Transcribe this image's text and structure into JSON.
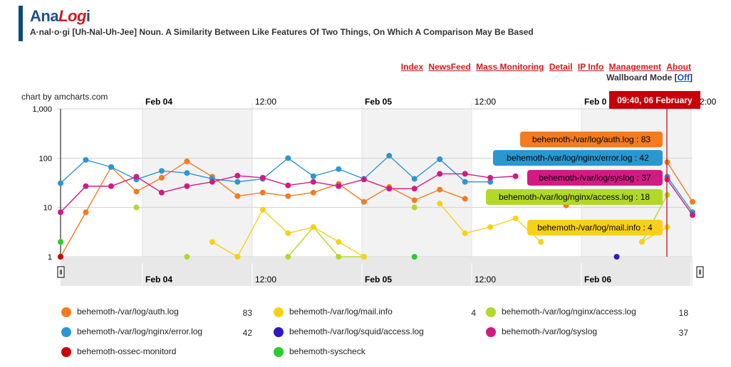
{
  "brand": {
    "part1": "Ana",
    "part2": "Log",
    "part3": "i"
  },
  "tagline": "A·nal·o·gi [Uh-Nal-Uh-Jee] Noun. A Similarity Between Like Features Of Two Things, On Which A Comparison May Be Based",
  "nav": [
    "Index",
    "NewsFeed",
    "Mass Monitoring",
    "Detail",
    "IP Info",
    "Management",
    "About"
  ],
  "wallboard": {
    "label": "Wallboard Mode",
    "open": "[",
    "link": "Off",
    "close": "]"
  },
  "credit": "chart by amcharts.com",
  "cursor_label": "09:40, 06 February",
  "colors": {
    "auth": "#f47b20",
    "mail": "#f8d117",
    "access": "#b2d82a",
    "error": "#2a97d1",
    "squid": "#3017c6",
    "syslog": "#d21a83",
    "ossec": "#c8000a",
    "syscheck": "#2bcc2b",
    "cursor": "#c8000a"
  },
  "chart_data": {
    "type": "line",
    "y_scale": "log",
    "ylim": [
      1,
      1000
    ],
    "yticks": [
      "1,000",
      "100",
      "10",
      "1"
    ],
    "x_labels": [
      "Feb 04",
      "12:00",
      "Feb 05",
      "12:00",
      "Feb 06",
      "12:00"
    ],
    "x_labels_top_partial": [
      "Feb 0",
      "2:00"
    ],
    "series": [
      {
        "key": "auth",
        "name": "behemoth-/var/log/auth.log",
        "value": "83",
        "points": [
          [
            0,
            1
          ],
          [
            1,
            8
          ],
          [
            2,
            66
          ],
          [
            3,
            21
          ],
          [
            4,
            40
          ],
          [
            5,
            86
          ],
          [
            6,
            42
          ],
          [
            7,
            17
          ],
          [
            8,
            20
          ],
          [
            9,
            17
          ],
          [
            10,
            20
          ],
          [
            11,
            30
          ],
          [
            12,
            13
          ],
          [
            13,
            26
          ],
          [
            14,
            14
          ],
          [
            15,
            23
          ],
          [
            16,
            15
          ],
          [
            20,
            11
          ],
          [
            24,
            83
          ],
          [
            25,
            13
          ]
        ]
      },
      {
        "key": "error",
        "name": "behemoth-/var/log/nginx/error.log",
        "value": "42",
        "points": [
          [
            0,
            31
          ],
          [
            1,
            92
          ],
          [
            2,
            66
          ],
          [
            3,
            37
          ],
          [
            4,
            55
          ],
          [
            5,
            50
          ],
          [
            6,
            38
          ],
          [
            7,
            33
          ],
          [
            8,
            38
          ],
          [
            9,
            100
          ],
          [
            10,
            43
          ],
          [
            11,
            60
          ],
          [
            12,
            38
          ],
          [
            13,
            112
          ],
          [
            14,
            38
          ],
          [
            15,
            95
          ],
          [
            16,
            33
          ],
          [
            17,
            33
          ],
          [
            24,
            42
          ],
          [
            25,
            8
          ]
        ]
      },
      {
        "key": "syslog",
        "name": "behemoth-/var/log/syslog",
        "value": "37",
        "points": [
          [
            0,
            8
          ],
          [
            1,
            27
          ],
          [
            2,
            27
          ],
          [
            3,
            42
          ],
          [
            4,
            20
          ],
          [
            5,
            27
          ],
          [
            6,
            33
          ],
          [
            7,
            44
          ],
          [
            8,
            40
          ],
          [
            9,
            28
          ],
          [
            10,
            33
          ],
          [
            11,
            27
          ],
          [
            12,
            37
          ],
          [
            13,
            24
          ],
          [
            14,
            24
          ],
          [
            15,
            48
          ],
          [
            16,
            48
          ],
          [
            17,
            40
          ],
          [
            18,
            43
          ],
          [
            24,
            37
          ],
          [
            25,
            7
          ]
        ]
      },
      {
        "key": "access",
        "name": "behemoth-/var/log/nginx/access.log",
        "value": "18",
        "points": [
          [
            0,
            2
          ],
          [
            3,
            10
          ],
          [
            5,
            1
          ],
          [
            7,
            1
          ],
          [
            9,
            1
          ],
          [
            10,
            4
          ],
          [
            11,
            1
          ],
          [
            12,
            1
          ],
          [
            14,
            10
          ],
          [
            23,
            2
          ],
          [
            24,
            18
          ]
        ]
      },
      {
        "key": "mail",
        "name": "behemoth-/var/log/mail.info",
        "value": "4",
        "points": [
          [
            6,
            2
          ],
          [
            7,
            1
          ],
          [
            8,
            9
          ],
          [
            9,
            3
          ],
          [
            10,
            4
          ],
          [
            11,
            2
          ],
          [
            12,
            1
          ],
          [
            15,
            12
          ],
          [
            16,
            3
          ],
          [
            17,
            4
          ],
          [
            18,
            6
          ],
          [
            19,
            2
          ],
          [
            23,
            2
          ],
          [
            24,
            4
          ]
        ]
      },
      {
        "key": "squid",
        "name": "behemoth-/var/log/squid/access.log",
        "value": "",
        "points": [
          [
            22,
            1
          ]
        ]
      },
      {
        "key": "ossec",
        "name": "behemoth-ossec-monitord",
        "value": "",
        "points": [
          [
            0,
            1
          ]
        ]
      },
      {
        "key": "syscheck",
        "name": "behemoth-syscheck",
        "value": "",
        "points": [
          [
            0,
            2
          ],
          [
            14,
            1
          ]
        ]
      }
    ],
    "tooltips": [
      {
        "key": "auth",
        "text": "behemoth-/var/log/auth.log : 83"
      },
      {
        "key": "error",
        "text": "behemoth-/var/log/nginx/error.log : 42"
      },
      {
        "key": "syslog",
        "text": "behemoth-/var/log/syslog : 37"
      },
      {
        "key": "access",
        "text": "behemoth-/var/log/nginx/access.log : 18"
      },
      {
        "key": "mail",
        "text": "behemoth-/var/log/mail.info : 4"
      }
    ],
    "legend_order": [
      "auth",
      "mail",
      "access",
      "error",
      "squid",
      "syslog",
      "ossec",
      "syscheck"
    ]
  }
}
